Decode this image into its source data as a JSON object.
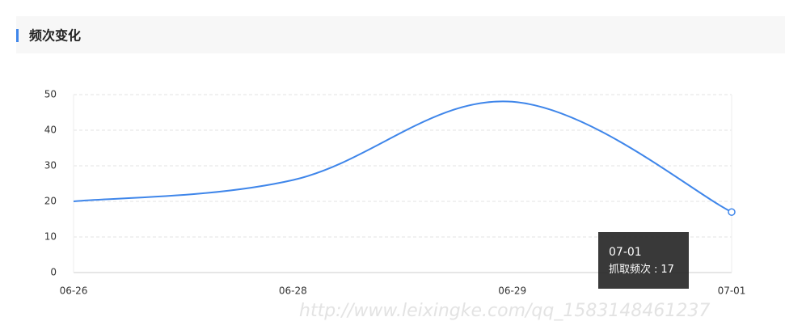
{
  "header": {
    "title": "频次变化"
  },
  "chart_data": {
    "type": "line",
    "categories": [
      "06-26",
      "06-28",
      "06-29",
      "07-01"
    ],
    "series": [
      {
        "name": "抓取频次",
        "color": "#3f86ea",
        "values": [
          20,
          26,
          48,
          17
        ]
      }
    ],
    "ylim": [
      0,
      50
    ],
    "yticks": [
      0,
      10,
      20,
      30,
      40,
      50
    ],
    "grid": true,
    "tooltip_separator": ":"
  },
  "watermark": "http://www.leixingke.com/qq_1583148461237"
}
